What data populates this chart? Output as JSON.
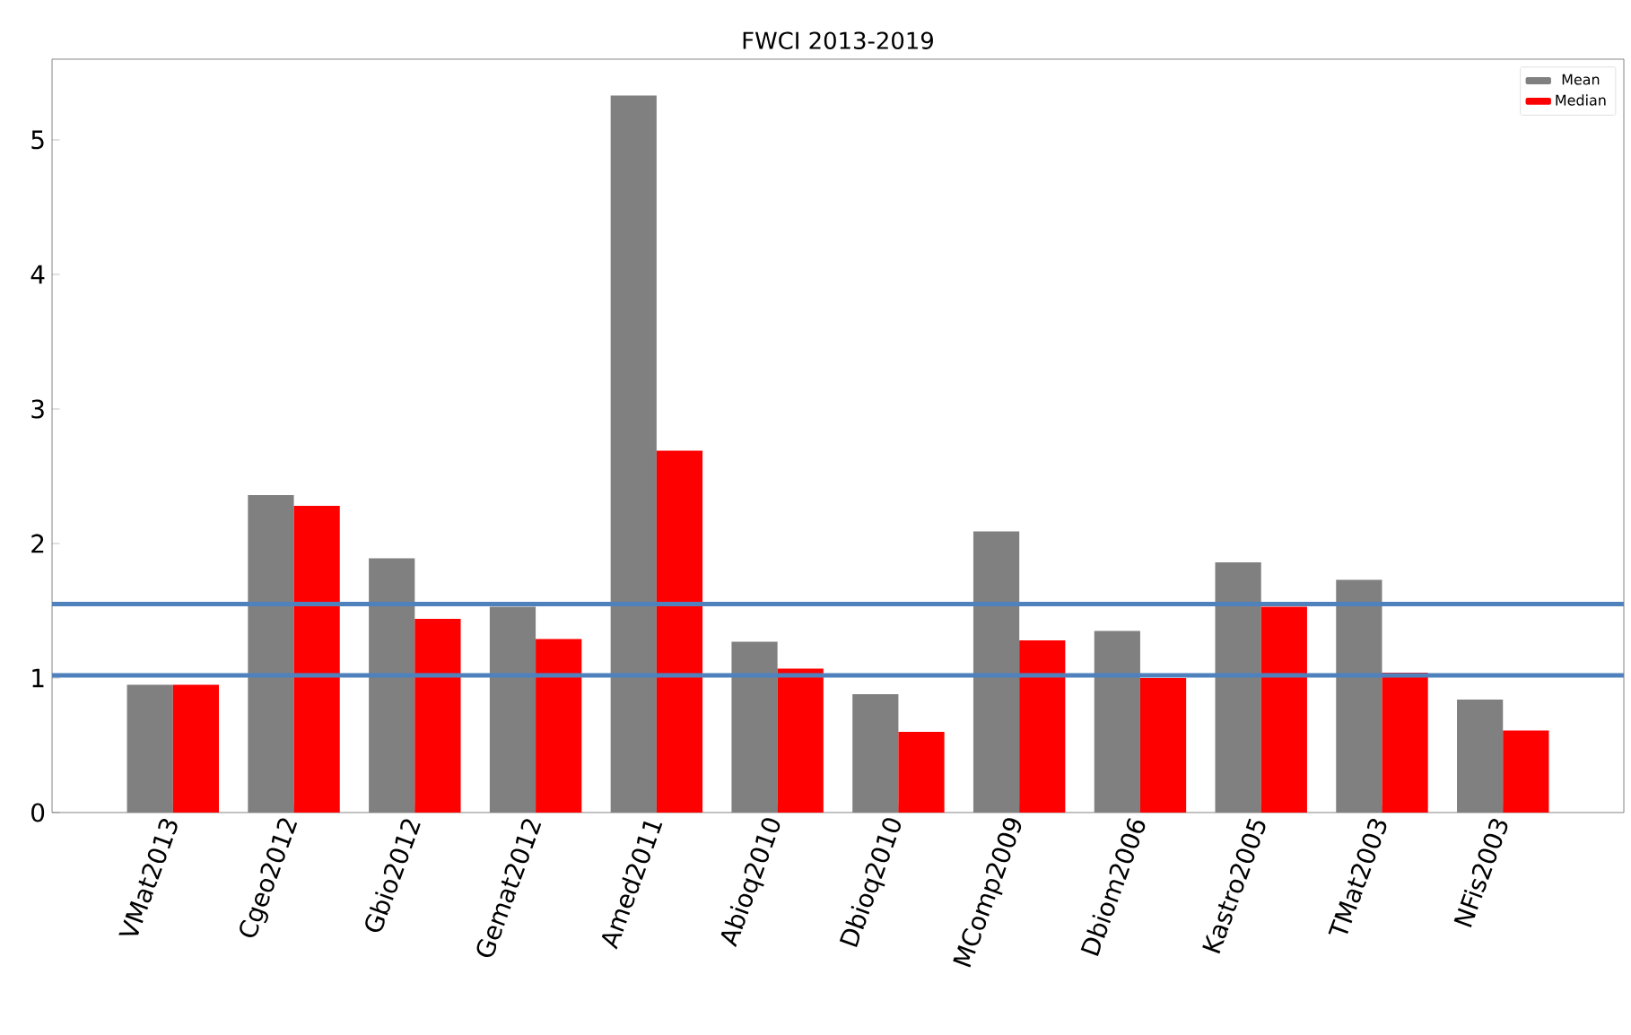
{
  "chart_data": {
    "type": "bar",
    "title": "FWCI 2013-2019",
    "categories": [
      "VMat2013",
      "Cgeo2012",
      "Gbio2012",
      "Gemat2012",
      "Amed2011",
      "Abioq2010",
      "Dbioq2010",
      "MComp2009",
      "Dbiom2006",
      "Kastro2005",
      "TMat2003",
      "NFis2003"
    ],
    "series": [
      {
        "name": "Mean",
        "color": "#808080",
        "values": [
          0.95,
          2.36,
          1.89,
          1.53,
          5.33,
          1.27,
          0.88,
          2.09,
          1.35,
          1.86,
          1.73,
          0.84
        ]
      },
      {
        "name": "Median",
        "color": "#ff0000",
        "values": [
          0.95,
          2.28,
          1.44,
          1.29,
          2.69,
          1.07,
          0.6,
          1.28,
          1.0,
          1.53,
          1.04,
          0.61
        ]
      }
    ],
    "ylim": [
      0,
      5.6
    ],
    "yticks": [
      0,
      1,
      2,
      3,
      4,
      5
    ],
    "ref_lines": [
      {
        "axis": "y",
        "value": 1.55,
        "color": "#4f81bd"
      },
      {
        "axis": "y",
        "value": 1.02,
        "color": "#4f81bd"
      }
    ],
    "grid": false,
    "legend": "top right"
  }
}
